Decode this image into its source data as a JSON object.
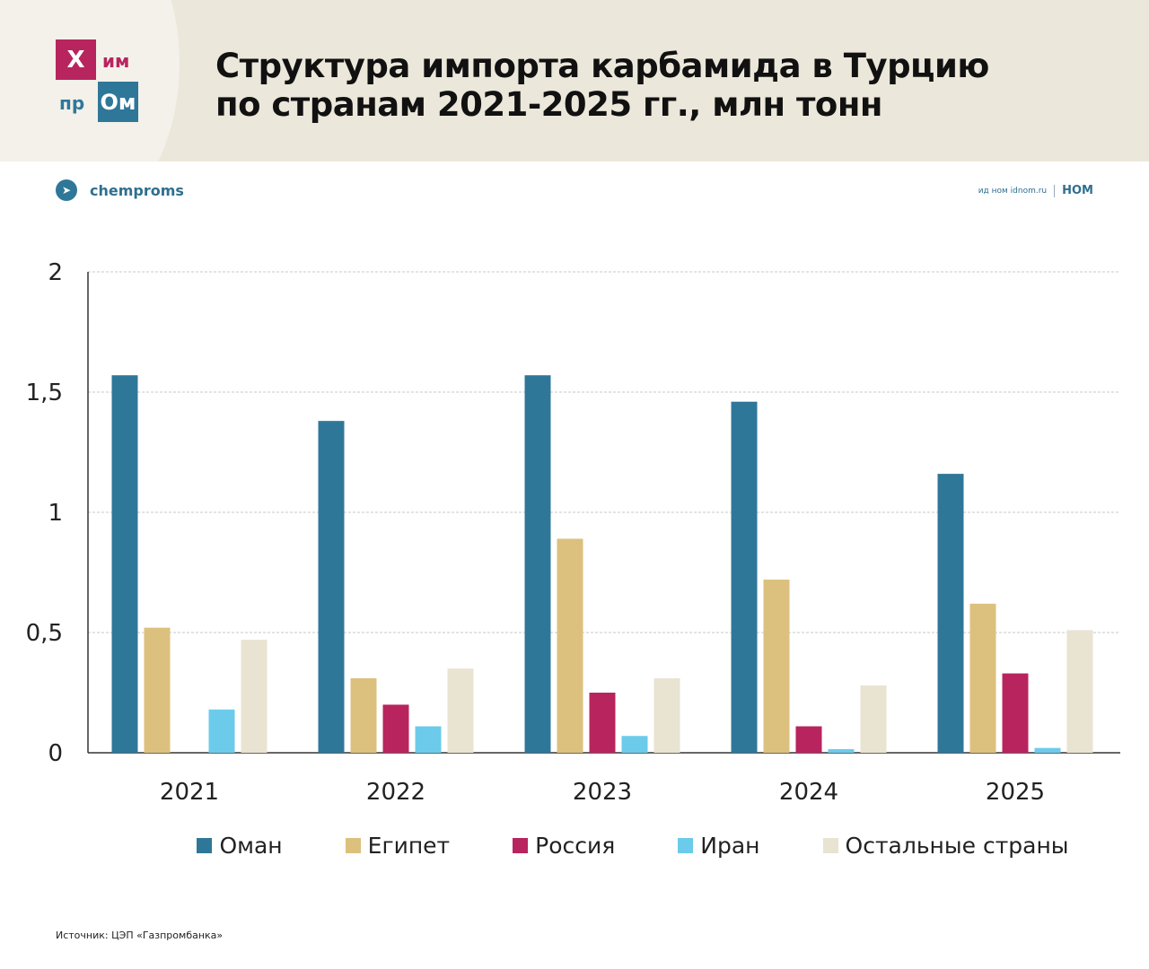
{
  "header": {
    "logo_text": [
      "Х",
      "им",
      "пр",
      "Ом"
    ],
    "title_line1": "Структура импорта карбамида в Турцию",
    "title_line2": "по странам 2021-2025 гг., млн тонн"
  },
  "telegram": {
    "icon": "telegram-icon",
    "label": "chemproms"
  },
  "partner": {
    "small": "ид ном idnom.ru",
    "brand": "НОМ"
  },
  "source": "Источник: ЦЭП «Газпромбанка»",
  "chart_data": {
    "type": "bar",
    "title": "Структура импорта карбамида в Турцию по странам 2021-2025 гг., млн тонн",
    "categories": [
      "2021",
      "2022",
      "2023",
      "2024",
      "2025"
    ],
    "ylim": [
      0,
      2
    ],
    "yticks": [
      0,
      0.5,
      1,
      1.5,
      2
    ],
    "ytick_labels": [
      "0",
      "0,5",
      "1",
      "1,5",
      "2"
    ],
    "grid": true,
    "legend_position": "bottom",
    "series": [
      {
        "name": "Оман",
        "color": "#2f7799",
        "values": [
          1.57,
          1.38,
          1.57,
          1.46,
          1.16
        ]
      },
      {
        "name": "Египет",
        "color": "#dcc07e",
        "values": [
          0.52,
          0.31,
          0.89,
          0.72,
          0.62
        ]
      },
      {
        "name": "Россия",
        "color": "#b8245e",
        "values": [
          0,
          0.2,
          0.25,
          0.11,
          0.33
        ]
      },
      {
        "name": "Иран",
        "color": "#6ccbeb",
        "values": [
          0.18,
          0.11,
          0.07,
          0.015,
          0.02
        ]
      },
      {
        "name": "Остальные страны",
        "color": "#e9e3d2",
        "values": [
          0.47,
          0.35,
          0.31,
          0.28,
          0.51
        ]
      }
    ]
  }
}
